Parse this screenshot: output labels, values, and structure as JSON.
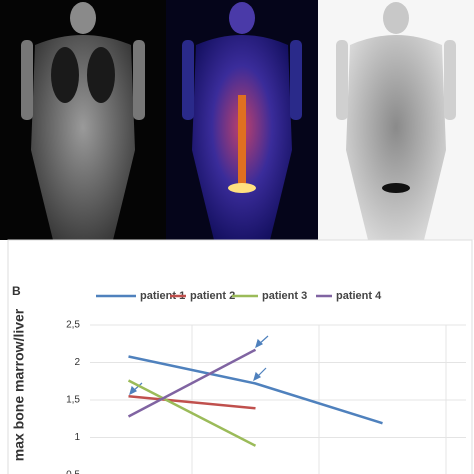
{
  "chart_data": {
    "type": "line",
    "panel_label": "B",
    "y_label": "max bone marrow/liver",
    "categories": [
      null,
      null,
      null
    ],
    "series": [
      {
        "name": "patient 1",
        "color": "#4f81bd",
        "values": [
          2.08,
          1.72,
          1.19
        ]
      },
      {
        "name": "patient 2",
        "color": "#c0504d",
        "values": [
          1.55,
          1.39,
          null
        ]
      },
      {
        "name": "patient 3",
        "color": "#9bbb59",
        "values": [
          1.76,
          0.89,
          null
        ]
      },
      {
        "name": "patient 4",
        "color": "#8064a2",
        "values": [
          1.28,
          2.17,
          null
        ]
      }
    ],
    "ylim": [
      0.5,
      2.5
    ],
    "yticks": [
      {
        "value": 0.5,
        "label": "0,5"
      },
      1,
      {
        "value": 1.5,
        "label": "1,5"
      },
      2,
      {
        "value": 2.5,
        "label": "2,5"
      }
    ],
    "grid": true
  }
}
